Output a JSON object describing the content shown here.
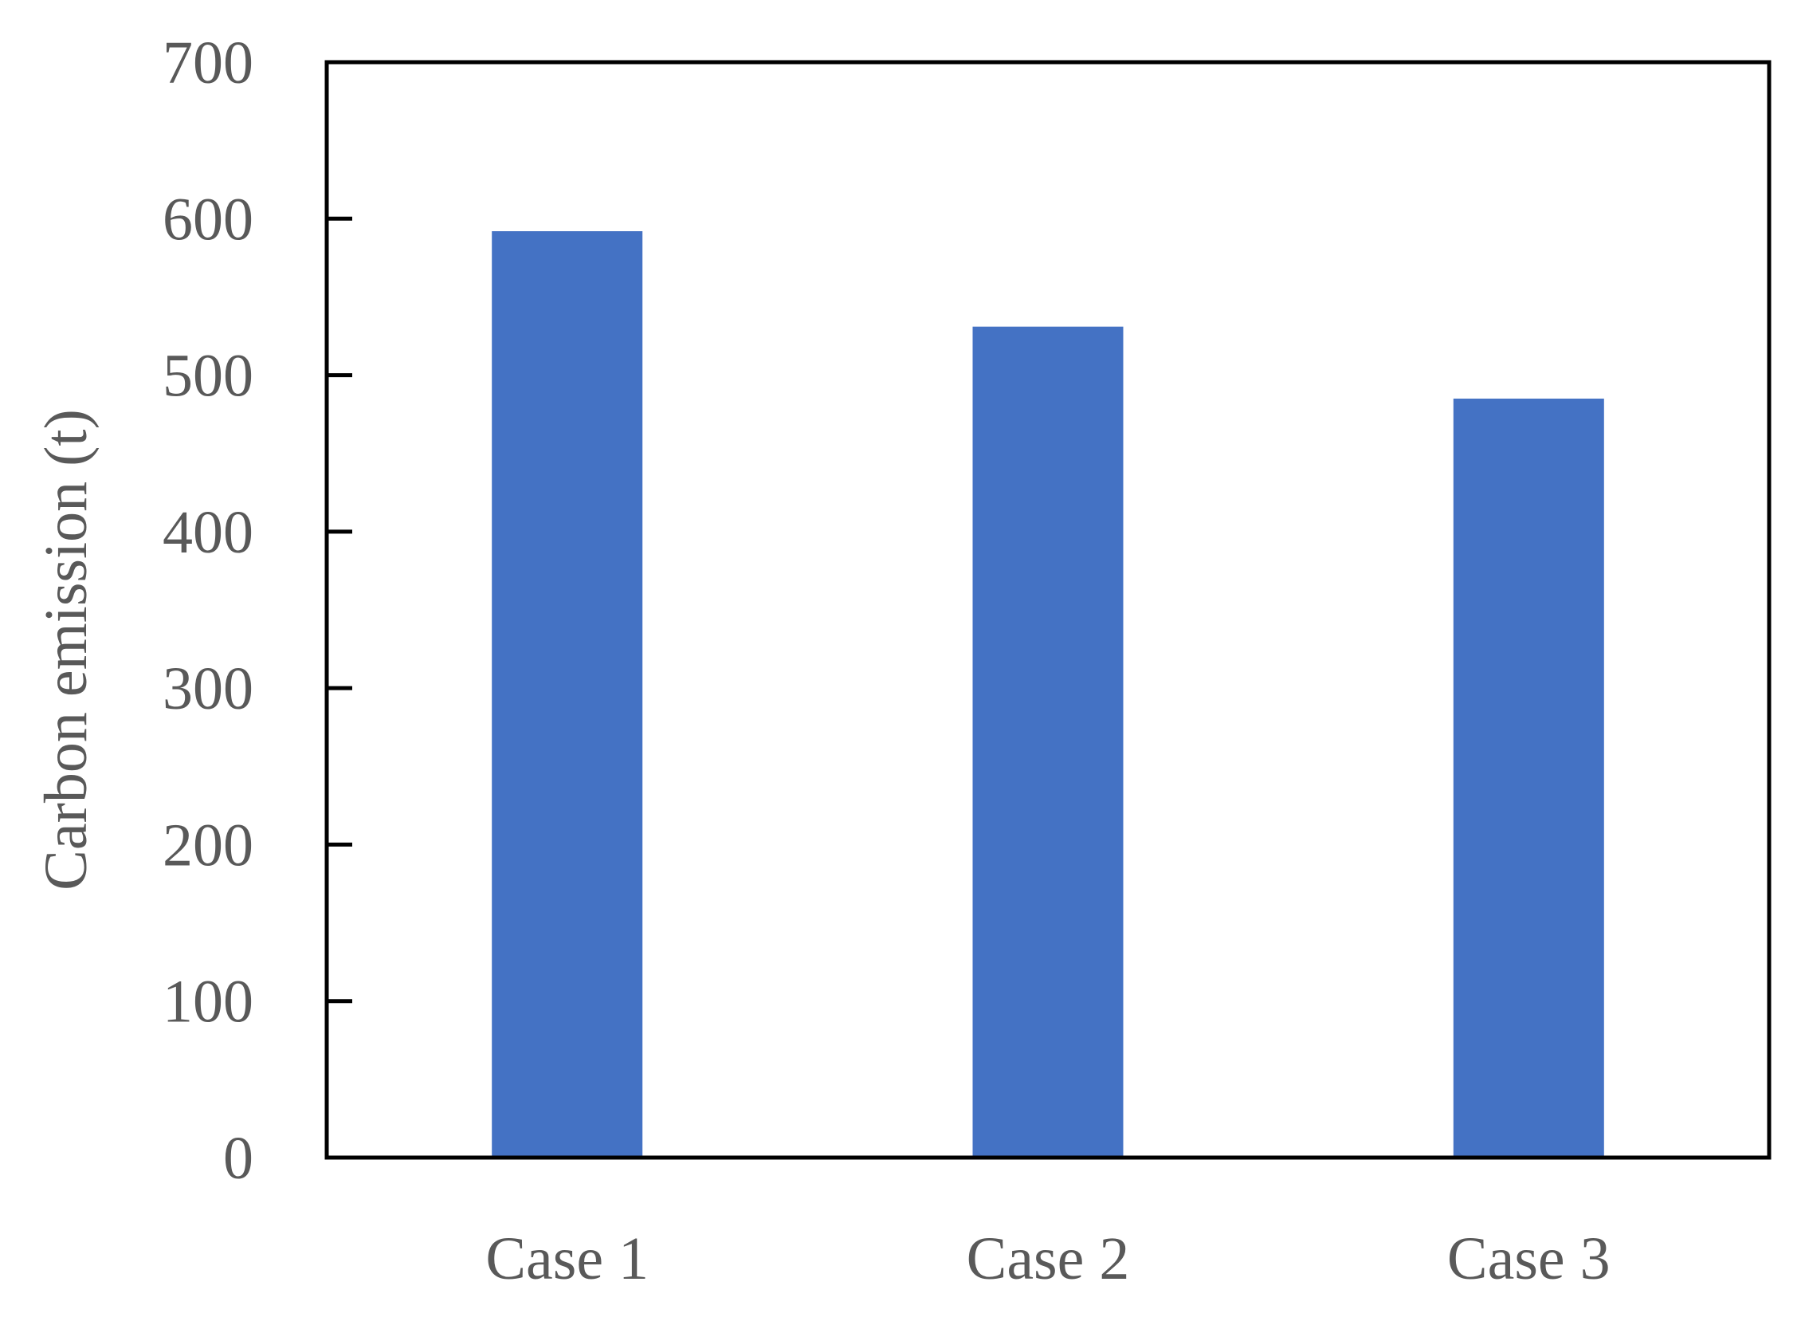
{
  "colors": {
    "bar": "#4472C4",
    "axis": "#000000",
    "text": "#595959",
    "background": "#ffffff"
  },
  "chart_data": {
    "type": "bar",
    "categories": [
      "Case 1",
      "Case 2",
      "Case 3"
    ],
    "values": [
      592,
      531,
      485
    ],
    "title": "",
    "xlabel": "",
    "ylabel": "Carbon emission (t)",
    "ylim": [
      0,
      700
    ],
    "yticks": [
      0,
      100,
      200,
      300,
      400,
      500,
      600,
      700
    ],
    "ytick_labels": [
      "0",
      "100",
      "200",
      "300",
      "400",
      "500",
      "600",
      "700"
    ],
    "grid": false,
    "legend": "none"
  }
}
